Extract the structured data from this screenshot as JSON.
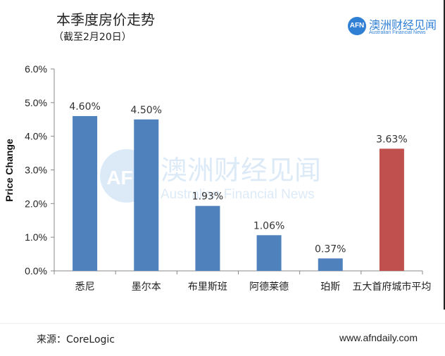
{
  "header": {
    "title": "本季度房价走势",
    "subtitle": "（截至2月20日）"
  },
  "logo": {
    "mark": "AFN",
    "name_cn": "澳洲财经见闻",
    "name_en": "Australian Financial News"
  },
  "watermark": {
    "mark": "AFN",
    "cn": "澳洲财经见闻",
    "en": "Australian Financial News"
  },
  "footer": {
    "source": "来源：CoreLogic",
    "website": "www.afndaily.com"
  },
  "colors": {
    "bar_primary": "#4f81bd",
    "bar_highlight": "#c0504d",
    "brand": "#2f7fd4"
  },
  "chart_data": {
    "type": "bar",
    "categories": [
      "悉尼",
      "墨尔本",
      "布里斯班",
      "阿德莱德",
      "珀斯",
      "五大首府城市平均"
    ],
    "values": [
      4.6,
      4.5,
      1.93,
      1.06,
      0.37,
      3.63
    ],
    "data_labels": [
      "4.60%",
      "4.50%",
      "1.93%",
      "1.06%",
      "0.37%",
      "3.63%"
    ],
    "highlight_index": 5,
    "ylabel": "Price Change",
    "xlabel": "",
    "ylim": [
      0,
      6
    ],
    "yticks": [
      "0.0%",
      "1.0%",
      "2.0%",
      "3.0%",
      "4.0%",
      "5.0%",
      "6.0%"
    ],
    "grid": false,
    "legend": "none"
  }
}
